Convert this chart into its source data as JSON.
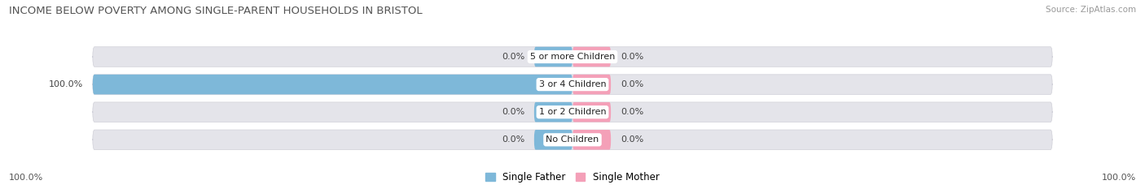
{
  "title": "INCOME BELOW POVERTY AMONG SINGLE-PARENT HOUSEHOLDS IN BRISTOL",
  "source": "Source: ZipAtlas.com",
  "categories": [
    "No Children",
    "1 or 2 Children",
    "3 or 4 Children",
    "5 or more Children"
  ],
  "single_father": [
    0.0,
    0.0,
    100.0,
    0.0
  ],
  "single_mother": [
    0.0,
    0.0,
    0.0,
    0.0
  ],
  "father_color": "#7eb8d9",
  "mother_color": "#f4a0b8",
  "bar_bg_color": "#e4e4ea",
  "bar_bg_border": "#d0d0d8",
  "title_fontsize": 9.5,
  "source_fontsize": 7.5,
  "label_fontsize": 8,
  "category_fontsize": 8,
  "legend_fontsize": 8.5,
  "axis_tick_fontsize": 8,
  "background_color": "#ffffff",
  "axis_label_left": "100.0%",
  "axis_label_right": "100.0%",
  "xlim": 100,
  "bar_stub": 8
}
